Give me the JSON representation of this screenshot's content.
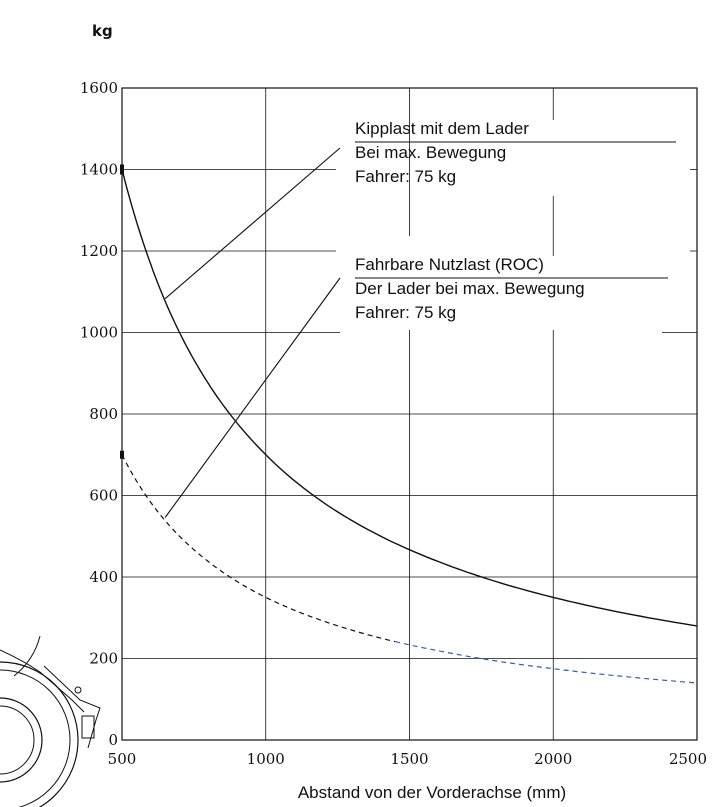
{
  "chart_data": {
    "type": "line",
    "unit_label": "kg",
    "xlabel": "Abstand von der Vorderachse (mm)",
    "ylabel": "",
    "xlim": [
      500,
      2500
    ],
    "ylim": [
      0,
      1600
    ],
    "x_ticks": [
      "500",
      "1000",
      "1500",
      "2000",
      "2500"
    ],
    "y_ticks": [
      "0",
      "200",
      "400",
      "600",
      "800",
      "1000",
      "1200",
      "1400",
      "1600"
    ],
    "grid": true,
    "colors": {
      "solid_series": "#111111",
      "dashed_series_near": "#111111",
      "dashed_series_far": "#2f5fb0",
      "grid": "#111111"
    },
    "series": [
      {
        "style": "solid",
        "x": [
          500,
          600,
          700,
          800,
          900,
          1000,
          1200,
          1400,
          1600,
          1800,
          2000,
          2200,
          2500
        ],
        "y": [
          1400,
          1167,
          1000,
          875,
          778,
          700,
          583,
          500,
          438,
          389,
          350,
          318,
          280
        ]
      },
      {
        "style": "dashed",
        "x": [
          500,
          600,
          700,
          800,
          900,
          1000,
          1200,
          1400,
          1600,
          1800,
          2000,
          2200,
          2500
        ],
        "y": [
          700,
          583,
          500,
          438,
          389,
          350,
          292,
          250,
          219,
          194,
          175,
          159,
          140
        ]
      }
    ],
    "annotations": [
      {
        "lines": [
          "Kipplast mit dem Lader",
          "Bei max. Bewegung",
          "Fahrer: 75 kg"
        ],
        "points_to": [
          650,
          1083
        ]
      },
      {
        "lines": [
          "Fahrbare Nutzlast (ROC)",
          "Der Lader bei max. Bewegung",
          "Fahrer: 75 kg"
        ],
        "points_to": [
          650,
          546
        ]
      }
    ]
  }
}
